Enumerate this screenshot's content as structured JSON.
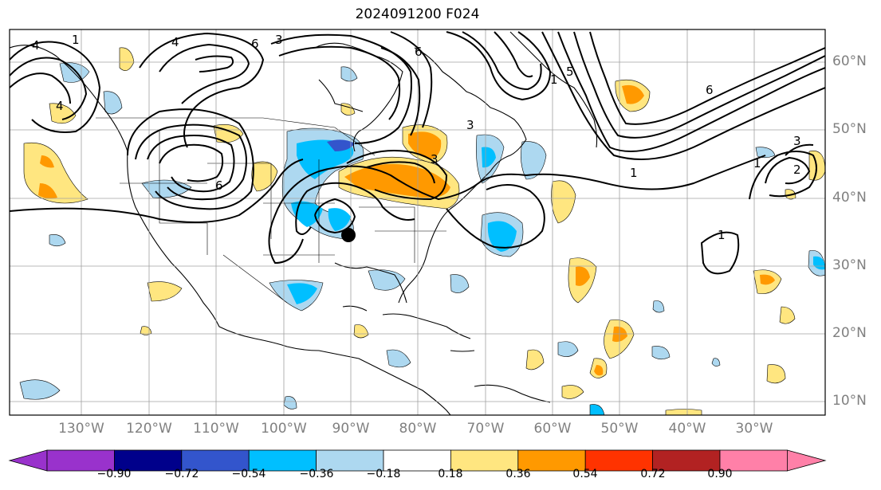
{
  "title": "2024091200 F024",
  "longitude_labels": [
    "130°W",
    "120°W",
    "110°W",
    "100°W",
    "90°W",
    "80°W",
    "70°W",
    "60°W",
    "50°W",
    "40°W",
    "30°W"
  ],
  "latitude_labels": [
    "60°N",
    "50°N",
    "40°N",
    "30°N",
    "20°N",
    "10°N"
  ],
  "colorbar": {
    "tick_labels": [
      "−0.90",
      "−0.72",
      "−0.54",
      "−0.36",
      "−0.18",
      "0.18",
      "0.36",
      "0.54",
      "0.72",
      "0.90"
    ],
    "colors": [
      "#9932cc",
      "#00008b",
      "#3355cc",
      "#00bfff",
      "#add8f0",
      "#ffffff",
      "#ffe680",
      "#ff9900",
      "#ff3300",
      "#b22222",
      "#ff80a8"
    ]
  },
  "contour_labels": [
    "1",
    "2",
    "3",
    "4",
    "5",
    "6"
  ],
  "colors": {
    "contour": "#000000",
    "coast": "#000000",
    "grid": "#a0a0a0",
    "marker": "#000000"
  }
}
